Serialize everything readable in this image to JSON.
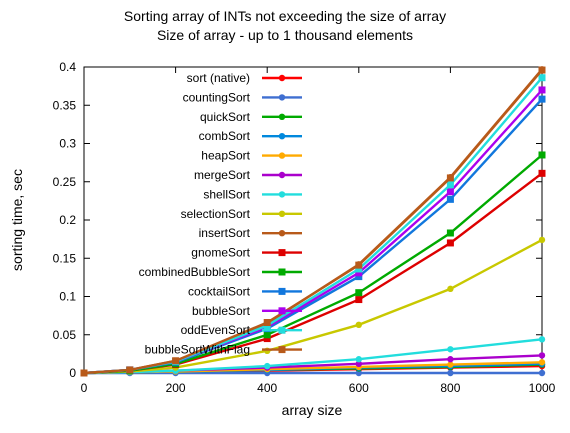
{
  "chart_data": {
    "type": "line",
    "title_lines": [
      "Sorting array of INTs not exceeding the size of array",
      "Size of array - up to 1 thousand elements"
    ],
    "xlabel": "array size",
    "ylabel": "sorting time, sec",
    "xlim": [
      0,
      1000
    ],
    "ylim": [
      0,
      0.4
    ],
    "x_ticks": [
      "0",
      "200",
      "400",
      "600",
      "800",
      "1000"
    ],
    "y_ticks": [
      "0",
      "0.05",
      "0.1",
      "0.15",
      "0.2",
      "0.25",
      "0.3",
      "0.35",
      "0.4"
    ],
    "grid": false,
    "legend_placement": "top-left",
    "x": [
      0,
      100,
      200,
      400,
      600,
      800,
      1000
    ],
    "series": [
      {
        "name": "sort (native)",
        "color": "#ff0000",
        "marker": "circle",
        "values": [
          0,
          0.001,
          0.002,
          0.003,
          0.005,
          0.007,
          0.009
        ]
      },
      {
        "name": "countingSort",
        "color": "#3f6fd1",
        "marker": "circle",
        "values": [
          0,
          0,
          0,
          0,
          0,
          0,
          0
        ]
      },
      {
        "name": "quickSort",
        "color": "#00aa00",
        "marker": "circle",
        "values": [
          0,
          0.001,
          0.002,
          0.004,
          0.006,
          0.008,
          0.011
        ]
      },
      {
        "name": "combSort",
        "color": "#0088dd",
        "marker": "circle",
        "values": [
          0,
          0.001,
          0.002,
          0.004,
          0.007,
          0.009,
          0.012
        ]
      },
      {
        "name": "heapSort",
        "color": "#ffaa00",
        "marker": "circle",
        "values": [
          0,
          0.001,
          0.002,
          0.005,
          0.008,
          0.011,
          0.014
        ]
      },
      {
        "name": "mergeSort",
        "color": "#aa00cc",
        "marker": "circle",
        "values": [
          0,
          0.001,
          0.003,
          0.007,
          0.012,
          0.018,
          0.023
        ]
      },
      {
        "name": "shellSort",
        "color": "#22dddd",
        "marker": "circle",
        "values": [
          0,
          0.001,
          0.003,
          0.009,
          0.018,
          0.031,
          0.044
        ]
      },
      {
        "name": "selectionSort",
        "color": "#c8c800",
        "marker": "circle",
        "values": [
          0,
          0.002,
          0.007,
          0.029,
          0.063,
          0.11,
          0.174
        ]
      },
      {
        "name": "insertSort",
        "color": "#b85a1a",
        "marker": "circle",
        "values": [
          0,
          0.004,
          0.016,
          0.065,
          0.142,
          0.256,
          0.397
        ]
      },
      {
        "name": "gnomeSort",
        "color": "#dd0000",
        "marker": "square",
        "values": [
          0,
          0.003,
          0.011,
          0.045,
          0.096,
          0.17,
          0.261
        ]
      },
      {
        "name": "combinedBubbleSort",
        "color": "#00aa00",
        "marker": "square",
        "values": [
          0,
          0.003,
          0.012,
          0.05,
          0.105,
          0.183,
          0.285
        ]
      },
      {
        "name": "cocktailSort",
        "color": "#1177dd",
        "marker": "square",
        "values": [
          0,
          0.004,
          0.014,
          0.058,
          0.126,
          0.227,
          0.358
        ]
      },
      {
        "name": "bubbleSort",
        "color": "#aa00ee",
        "marker": "square",
        "values": [
          0,
          0.004,
          0.015,
          0.06,
          0.131,
          0.237,
          0.37
        ]
      },
      {
        "name": "oddEvenSort",
        "color": "#22dddd",
        "marker": "square",
        "values": [
          0,
          0.004,
          0.015,
          0.062,
          0.136,
          0.246,
          0.386
        ]
      },
      {
        "name": "bubbleSortWithFlag",
        "color": "#b85a1a",
        "marker": "square",
        "values": [
          0,
          0.004,
          0.016,
          0.066,
          0.141,
          0.255,
          0.396
        ]
      }
    ]
  }
}
